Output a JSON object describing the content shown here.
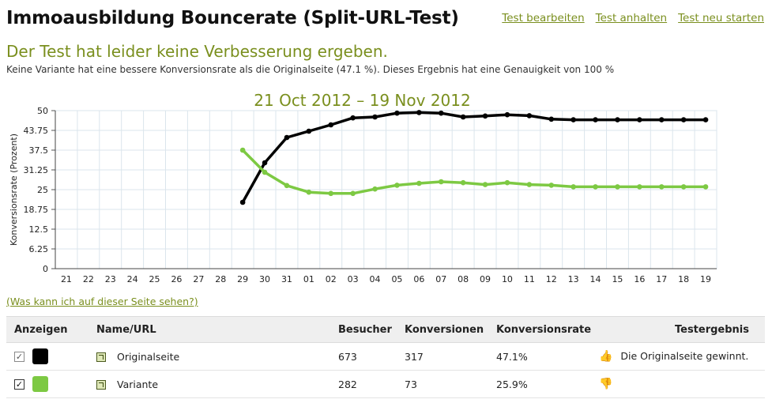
{
  "header": {
    "title": "Immoausbildung Bouncerate (Split-URL-Test)",
    "actions": [
      "Test bearbeiten",
      "Test anhalten",
      "Test neu starten"
    ]
  },
  "result": {
    "heading": "Der Test hat leider keine Verbesserung ergeben.",
    "text": "Keine Variante hat eine bessere Konversionsrate als die Originalseite (47.1 %). Dieses Ergebnis hat eine Genauigkeit von 100 %"
  },
  "chart_data": {
    "type": "line",
    "title": "21 Oct 2012 – 19 Nov 2012",
    "ylabel": "Konversionsrate (Prozent)",
    "xlabel": "",
    "ylim": [
      0,
      50
    ],
    "yticks": [
      "0",
      "6.25",
      "12.5",
      "18.75",
      "25",
      "31.25",
      "37.5",
      "43.75",
      "50"
    ],
    "categories": [
      "21",
      "22",
      "23",
      "24",
      "25",
      "26",
      "27",
      "28",
      "29",
      "30",
      "31",
      "01",
      "02",
      "03",
      "04",
      "05",
      "06",
      "07",
      "08",
      "09",
      "10",
      "11",
      "12",
      "13",
      "14",
      "15",
      "16",
      "17",
      "18",
      "19"
    ],
    "grid": true,
    "series": [
      {
        "name": "Originalseite",
        "color": "#000000",
        "values": [
          null,
          null,
          null,
          null,
          null,
          null,
          null,
          null,
          21,
          33.5,
          41.5,
          43.5,
          45.5,
          47.7,
          48,
          49.2,
          49.4,
          49.2,
          48,
          48.3,
          48.7,
          48.4,
          47.3,
          47.1,
          47.1,
          47.1,
          47.1,
          47.1,
          47.1,
          47.1
        ]
      },
      {
        "name": "Variante",
        "color": "#7dc943",
        "values": [
          null,
          null,
          null,
          null,
          null,
          null,
          null,
          null,
          37.5,
          30.5,
          26.3,
          24.2,
          23.8,
          23.8,
          25.2,
          26.4,
          27,
          27.5,
          27.2,
          26.6,
          27.2,
          26.6,
          26.4,
          25.9,
          25.9,
          25.9,
          25.9,
          25.9,
          25.9,
          25.9
        ]
      }
    ]
  },
  "help_link": "(Was kann ich auf dieser Seite sehen?)",
  "table": {
    "headers": [
      "Anzeigen",
      "Name/URL",
      "Besucher",
      "Konversionen",
      "Konversionsrate",
      "Testergebnis"
    ],
    "rows": [
      {
        "name": "Originalseite",
        "visitors": "673",
        "conversions": "317",
        "rate": "47.1%",
        "result": "Die Originalseite gewinnt.",
        "color": "#000000",
        "checked": true,
        "result_icon": "thumbs-up-icon"
      },
      {
        "name": "Variante",
        "visitors": "282",
        "conversions": "73",
        "rate": "25.9%",
        "result": "",
        "color": "#7dc943",
        "checked": true,
        "result_icon": "thumbs-down-icon"
      }
    ]
  }
}
